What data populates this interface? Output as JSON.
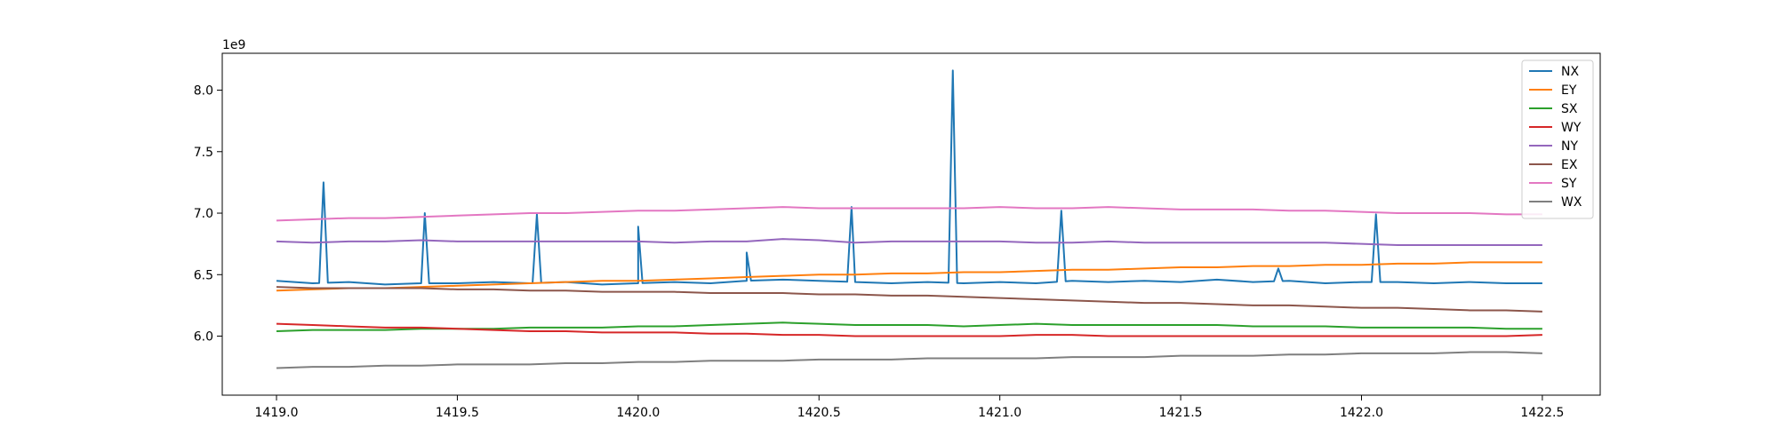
{
  "chart_data": {
    "type": "line",
    "title": "",
    "xlabel": "",
    "ylabel": "",
    "offset_label": "1e9",
    "xlim": [
      1418.85,
      1422.66
    ],
    "ylim": [
      5.52,
      8.3
    ],
    "x_ticks": [
      1419.0,
      1419.5,
      1420.0,
      1420.5,
      1421.0,
      1421.5,
      1422.0,
      1422.5
    ],
    "x_tick_labels": [
      "1419.0",
      "1419.5",
      "1420.0",
      "1420.5",
      "1421.0",
      "1421.5",
      "1422.0",
      "1422.5"
    ],
    "y_ticks": [
      6.0,
      6.5,
      7.0,
      7.5,
      8.0
    ],
    "y_tick_labels": [
      "6.0",
      "6.5",
      "7.0",
      "7.5",
      "8.0"
    ],
    "legend_position": "top-right",
    "grid": false,
    "x": [
      1419.0,
      1419.1,
      1419.2,
      1419.3,
      1419.4,
      1419.5,
      1419.6,
      1419.7,
      1419.8,
      1419.9,
      1420.0,
      1420.1,
      1420.2,
      1420.3,
      1420.4,
      1420.5,
      1420.6,
      1420.7,
      1420.8,
      1420.9,
      1421.0,
      1421.1,
      1421.2,
      1421.3,
      1421.4,
      1421.5,
      1421.6,
      1421.7,
      1421.8,
      1421.9,
      1422.0,
      1422.1,
      1422.2,
      1422.3,
      1422.4,
      1422.5
    ],
    "series": [
      {
        "name": "NX",
        "color": "#1f77b4",
        "values": [
          6.45,
          6.43,
          6.44,
          6.42,
          6.43,
          6.43,
          6.44,
          6.43,
          6.44,
          6.42,
          6.43,
          6.44,
          6.43,
          6.45,
          6.46,
          6.45,
          6.44,
          6.43,
          6.44,
          6.43,
          6.44,
          6.43,
          6.45,
          6.44,
          6.45,
          6.44,
          6.46,
          6.44,
          6.45,
          6.43,
          6.44,
          6.44,
          6.43,
          6.44,
          6.43,
          6.43
        ],
        "spikes": [
          {
            "x": 1419.13,
            "y": 7.25
          },
          {
            "x": 1419.41,
            "y": 7.0
          },
          {
            "x": 1419.72,
            "y": 6.99
          },
          {
            "x": 1420.0,
            "y": 6.89
          },
          {
            "x": 1420.3,
            "y": 6.68
          },
          {
            "x": 1420.59,
            "y": 7.05
          },
          {
            "x": 1420.87,
            "y": 8.16
          },
          {
            "x": 1421.17,
            "y": 7.02
          },
          {
            "x": 1421.77,
            "y": 6.55
          },
          {
            "x": 1422.04,
            "y": 6.99
          }
        ]
      },
      {
        "name": "EY",
        "color": "#ff7f0e",
        "values": [
          6.37,
          6.38,
          6.39,
          6.39,
          6.4,
          6.41,
          6.42,
          6.43,
          6.44,
          6.45,
          6.45,
          6.46,
          6.47,
          6.48,
          6.49,
          6.5,
          6.5,
          6.51,
          6.51,
          6.52,
          6.52,
          6.53,
          6.54,
          6.54,
          6.55,
          6.56,
          6.56,
          6.57,
          6.57,
          6.58,
          6.58,
          6.59,
          6.59,
          6.6,
          6.6,
          6.6
        ]
      },
      {
        "name": "SX",
        "color": "#2ca02c",
        "values": [
          6.04,
          6.05,
          6.05,
          6.05,
          6.06,
          6.06,
          6.06,
          6.07,
          6.07,
          6.07,
          6.08,
          6.08,
          6.09,
          6.1,
          6.11,
          6.1,
          6.09,
          6.09,
          6.09,
          6.08,
          6.09,
          6.1,
          6.09,
          6.09,
          6.09,
          6.09,
          6.09,
          6.08,
          6.08,
          6.08,
          6.07,
          6.07,
          6.07,
          6.07,
          6.06,
          6.06
        ]
      },
      {
        "name": "WY",
        "color": "#d62728",
        "values": [
          6.1,
          6.09,
          6.08,
          6.07,
          6.07,
          6.06,
          6.05,
          6.04,
          6.04,
          6.03,
          6.03,
          6.03,
          6.02,
          6.02,
          6.01,
          6.01,
          6.0,
          6.0,
          6.0,
          6.0,
          6.0,
          6.01,
          6.01,
          6.0,
          6.0,
          6.0,
          6.0,
          6.0,
          6.0,
          6.0,
          6.0,
          6.0,
          6.0,
          6.0,
          6.0,
          6.01
        ]
      },
      {
        "name": "NY",
        "color": "#9467bd",
        "values": [
          6.77,
          6.76,
          6.77,
          6.77,
          6.78,
          6.77,
          6.77,
          6.77,
          6.77,
          6.77,
          6.77,
          6.76,
          6.77,
          6.77,
          6.79,
          6.78,
          6.76,
          6.77,
          6.77,
          6.77,
          6.77,
          6.76,
          6.76,
          6.77,
          6.76,
          6.76,
          6.76,
          6.76,
          6.76,
          6.76,
          6.75,
          6.74,
          6.74,
          6.74,
          6.74,
          6.74
        ]
      },
      {
        "name": "EX",
        "color": "#8c564b",
        "values": [
          6.4,
          6.39,
          6.39,
          6.39,
          6.39,
          6.38,
          6.38,
          6.37,
          6.37,
          6.36,
          6.36,
          6.36,
          6.35,
          6.35,
          6.35,
          6.34,
          6.34,
          6.33,
          6.33,
          6.32,
          6.31,
          6.3,
          6.29,
          6.28,
          6.27,
          6.27,
          6.26,
          6.25,
          6.25,
          6.24,
          6.23,
          6.23,
          6.22,
          6.21,
          6.21,
          6.2
        ]
      },
      {
        "name": "SY",
        "color": "#e377c2",
        "values": [
          6.94,
          6.95,
          6.96,
          6.96,
          6.97,
          6.98,
          6.99,
          7.0,
          7.0,
          7.01,
          7.02,
          7.02,
          7.03,
          7.04,
          7.05,
          7.04,
          7.04,
          7.04,
          7.04,
          7.04,
          7.05,
          7.04,
          7.04,
          7.05,
          7.04,
          7.03,
          7.03,
          7.03,
          7.02,
          7.02,
          7.01,
          7.0,
          7.0,
          7.0,
          6.99,
          6.99
        ]
      },
      {
        "name": "WX",
        "color": "#7f7f7f",
        "values": [
          5.74,
          5.75,
          5.75,
          5.76,
          5.76,
          5.77,
          5.77,
          5.77,
          5.78,
          5.78,
          5.79,
          5.79,
          5.8,
          5.8,
          5.8,
          5.81,
          5.81,
          5.81,
          5.82,
          5.82,
          5.82,
          5.82,
          5.83,
          5.83,
          5.83,
          5.84,
          5.84,
          5.84,
          5.85,
          5.85,
          5.86,
          5.86,
          5.86,
          5.87,
          5.87,
          5.86
        ]
      }
    ]
  }
}
